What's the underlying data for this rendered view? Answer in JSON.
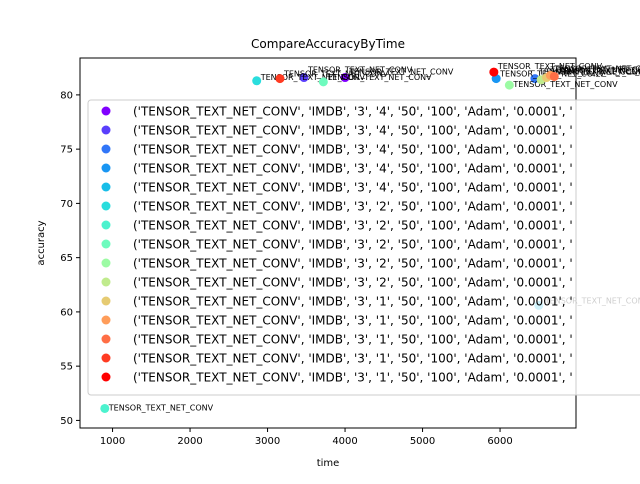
{
  "chart_data": {
    "type": "scatter",
    "title": "CompareAccuracyByTime",
    "xlabel": "time",
    "ylabel": "accuracy",
    "xlim": [
      580,
      6980
    ],
    "ylim": [
      49.3,
      83.4
    ],
    "xticks": [
      1000,
      2000,
      3000,
      4000,
      5000,
      6000
    ],
    "yticks": [
      50,
      55,
      60,
      65,
      70,
      75,
      80
    ],
    "grid": false,
    "legend_position": "right",
    "point_label": "TENSOR_TEXT_NET_CONV",
    "series": [
      {
        "name": "('TENSOR_TEXT_NET_CONV', 'IMDB', '3', '4', '50', '100', 'Adam', '0.0001', '",
        "color": "#8000ff",
        "x": 4000,
        "y": 81.6
      },
      {
        "name": "('TENSOR_TEXT_NET_CONV', 'IMDB', '3', '4', '50', '100', 'Adam', '0.0001', '",
        "color": "#5a3ffc",
        "x": 3470,
        "y": 81.6
      },
      {
        "name": "('TENSOR_TEXT_NET_CONV', 'IMDB', '3', '4', '50', '100', 'Adam', '0.0001', '",
        "color": "#3176f8",
        "x": 6450,
        "y": 81.5
      },
      {
        "name": "('TENSOR_TEXT_NET_CONV', 'IMDB', '3', '4', '50', '100', 'Adam', '0.0001', '",
        "color": "#1996f3",
        "x": 5950,
        "y": 81.5
      },
      {
        "name": "('TENSOR_TEXT_NET_CONV', 'IMDB', '3', '4', '50', '100', 'Adam', '0.0001', '",
        "color": "#18bde8",
        "x": 6500,
        "y": 60.6
      },
      {
        "name": "('TENSOR_TEXT_NET_CONV', 'IMDB', '3', '2', '50', '100', 'Adam', '0.0001', '",
        "color": "#2adddd",
        "x": 2860,
        "y": 81.3
      },
      {
        "name": "('TENSOR_TEXT_NET_CONV', 'IMDB', '3', '2', '50', '100', 'Adam', '0.0001', '",
        "color": "#4cf2ce",
        "x": 900,
        "y": 51.1
      },
      {
        "name": "('TENSOR_TEXT_NET_CONV', 'IMDB', '3', '2', '50', '100', 'Adam', '0.0001', '",
        "color": "#6efbbe",
        "x": 3720,
        "y": 81.2
      },
      {
        "name": "('TENSOR_TEXT_NET_CONV', 'IMDB', '3', '2', '50', '100', 'Adam', '0.0001', '",
        "color": "#9cfba4",
        "x": 6120,
        "y": 80.9
      },
      {
        "name": "('TENSOR_TEXT_NET_CONV', 'IMDB', '3', '2', '50', '100', 'Adam', '0.0001', '",
        "color": "#c0eb8d",
        "x": 6530,
        "y": 81.4
      },
      {
        "name": "('TENSOR_TEXT_NET_CONV', 'IMDB', '3', '1', '50', '100', 'Adam', '0.0001', '",
        "color": "#e6cb72",
        "x": 6600,
        "y": 81.6
      },
      {
        "name": "('TENSOR_TEXT_NET_CONV', 'IMDB', '3', '1', '50', '100', 'Adam', '0.0001', '",
        "color": "#ff9d5a",
        "x": 6650,
        "y": 81.8
      },
      {
        "name": "('TENSOR_TEXT_NET_CONV', 'IMDB', '3', '1', '50', '100', 'Adam', '0.0001', '",
        "color": "#ff6e45",
        "x": 6700,
        "y": 81.7
      },
      {
        "name": "('TENSOR_TEXT_NET_CONV', 'IMDB', '3', '1', '50', '100', 'Adam', '0.0001', '",
        "color": "#ff3b22",
        "x": 3160,
        "y": 81.5
      },
      {
        "name": "('TENSOR_TEXT_NET_CONV', 'IMDB', '3', '1', '50', '100', 'Adam', '0.0001', '",
        "color": "#ff0000",
        "x": 5920,
        "y": 82.1
      }
    ]
  }
}
